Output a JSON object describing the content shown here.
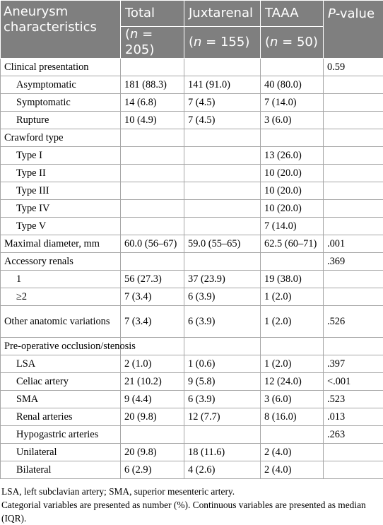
{
  "header": {
    "col1": "Aneurysm characteristics",
    "col2": "Total",
    "col3": "Juxtarenal",
    "col4": "TAAA",
    "col5_italic": "P",
    "col5_rest": "-value",
    "n_total": "(n = 205)",
    "n_juxta": "(n = 155)",
    "n_taaa": "(n = 50)"
  },
  "rows": [
    {
      "label": "Clinical presentation",
      "total": "",
      "juxta": "",
      "taaa": "",
      "p": "0.59",
      "indent": false
    },
    {
      "label": "Asymptomatic",
      "total": "181 (88.3)",
      "juxta": "141 (91.0)",
      "taaa": "40 (80.0)",
      "p": "",
      "indent": true
    },
    {
      "label": "Symptomatic",
      "total": "14 (6.8)",
      "juxta": "7 (4.5)",
      "taaa": "7 (14.0)",
      "p": "",
      "indent": true
    },
    {
      "label": "Rupture",
      "total": "10 (4.9)",
      "juxta": "7 (4.5)",
      "taaa": "3 (6.0)",
      "p": "",
      "indent": true
    },
    {
      "label": "Crawford type",
      "total": "",
      "juxta": "",
      "taaa": "",
      "p": "",
      "indent": false
    },
    {
      "label": "Type I",
      "total": "",
      "juxta": "",
      "taaa": "13 (26.0)",
      "p": "",
      "indent": true
    },
    {
      "label": "Type II",
      "total": "",
      "juxta": "",
      "taaa": "10 (20.0)",
      "p": "",
      "indent": true
    },
    {
      "label": "Type III",
      "total": "",
      "juxta": "",
      "taaa": "10 (20.0)",
      "p": "",
      "indent": true
    },
    {
      "label": "Type IV",
      "total": "",
      "juxta": "",
      "taaa": "10 (20.0)",
      "p": "",
      "indent": true
    },
    {
      "label": "Type V",
      "total": "",
      "juxta": "",
      "taaa": "7 (14.0)",
      "p": "",
      "indent": true
    },
    {
      "label": "Maximal diameter, mm",
      "total": "60.0 (56–67)",
      "juxta": "59.0 (55–65)",
      "taaa": "62.5 (60–71)",
      "p": ".001",
      "indent": false
    },
    {
      "label": "Accessory renals",
      "total": "",
      "juxta": "",
      "taaa": "",
      "p": ".369",
      "indent": false
    },
    {
      "label": "1",
      "total": "56 (27.3)",
      "juxta": "37 (23.9)",
      "taaa": "19 (38.0)",
      "p": "",
      "indent": true
    },
    {
      "label": "≥2",
      "total": "7 (3.4)",
      "juxta": "6 (3.9)",
      "taaa": "1 (2.0)",
      "p": "",
      "indent": true
    },
    {
      "label": "Other anatomic variations",
      "total": "7 (3.4)",
      "juxta": "6 (3.9)",
      "taaa": "1 (2.0)",
      "p": ".526",
      "indent": false,
      "tall": true
    },
    {
      "label": "Pre-operative occlusion/stenosis",
      "total": "",
      "juxta": "",
      "taaa": "",
      "p": "",
      "indent": false
    },
    {
      "label": "LSA",
      "total": "2 (1.0)",
      "juxta": "1 (0.6)",
      "taaa": "1 (2.0)",
      "p": ".397",
      "indent": true
    },
    {
      "label": "Celiac artery",
      "total": "21 (10.2)",
      "juxta": "9 (5.8)",
      "taaa": "12 (24.0)",
      "p": "<.001",
      "indent": true
    },
    {
      "label": "SMA",
      "total": "9 (4.4)",
      "juxta": "6 (3.9)",
      "taaa": "3 (6.0)",
      "p": ".523",
      "indent": true
    },
    {
      "label": "Renal arteries",
      "total": "20 (9.8)",
      "juxta": "12 (7.7)",
      "taaa": "8 (16.0)",
      "p": ".013",
      "indent": true
    },
    {
      "label": "Hypogastric arteries",
      "total": "",
      "juxta": "",
      "taaa": "",
      "p": ".263",
      "indent": true
    },
    {
      "label": "Unilateral",
      "total": "20 (9.8)",
      "juxta": "18 (11.6)",
      "taaa": "2 (4.0)",
      "p": "",
      "indent": true
    },
    {
      "label": "Bilateral",
      "total": "6 (2.9)",
      "juxta": "4 (2.6)",
      "taaa": "2 (4.0)",
      "p": "",
      "indent": true
    }
  ],
  "footnotes": [
    "LSA, left subclavian artery; SMA, superior mesenteric artery.",
    "Categorial variables are presented as number (%). Continuous variables are presented as median (IQR)."
  ]
}
